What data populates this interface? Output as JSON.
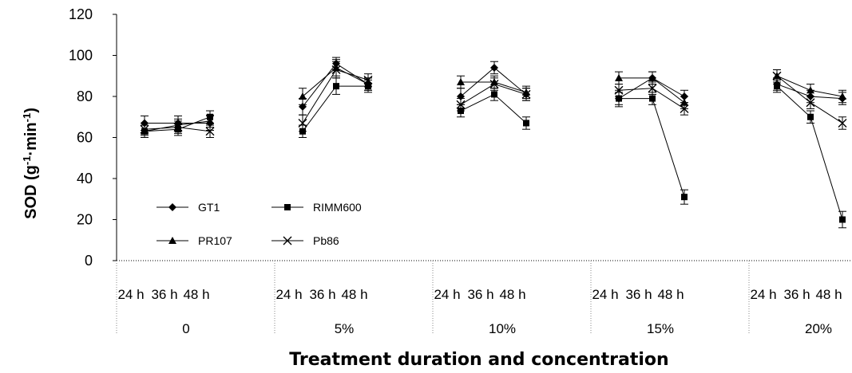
{
  "chart_data": {
    "type": "line",
    "ylabel": "SOD (g-1·min-1)",
    "ylabel_parts": {
      "base": "SOD (g",
      "sup1": "-1",
      "mid": "·min",
      "sup2": "-1",
      "end": ")"
    },
    "xlabel": "Treatment duration and concentration",
    "ylim": [
      0,
      120
    ],
    "yticks": [
      "0",
      "20",
      "40",
      "60",
      "80",
      "100",
      "120"
    ],
    "durations": [
      "24 h",
      "36 h",
      "48 h"
    ],
    "groups": [
      "0",
      "5%",
      "10%",
      "15%",
      "20%"
    ],
    "series": [
      {
        "name": "GT1",
        "marker": "diamond",
        "values": [
          [
            67,
            67,
            67
          ],
          [
            75,
            96,
            86
          ],
          [
            80,
            94,
            81
          ],
          [
            79,
            89,
            80
          ],
          [
            86,
            80,
            79
          ]
        ],
        "errors": [
          [
            3.5,
            3.5,
            3.5
          ],
          [
            4,
            3,
            3
          ],
          [
            4,
            3,
            3
          ],
          [
            4,
            3,
            3
          ],
          [
            3,
            3,
            3
          ]
        ]
      },
      {
        "name": "RIMM600",
        "marker": "square",
        "values": [
          [
            63,
            64,
            70
          ],
          [
            63,
            85,
            85
          ],
          [
            73,
            81,
            67
          ],
          [
            79,
            79,
            31
          ],
          [
            85,
            70,
            20
          ]
        ],
        "errors": [
          [
            3,
            3,
            3
          ],
          [
            3,
            4,
            3
          ],
          [
            3,
            3,
            3
          ],
          [
            3,
            3,
            3.5
          ],
          [
            3,
            3,
            4
          ]
        ]
      },
      {
        "name": "PR107",
        "marker": "triangle",
        "values": [
          [
            63,
            66,
            68
          ],
          [
            80,
            94,
            86
          ],
          [
            87,
            87,
            82
          ],
          [
            89,
            89,
            77
          ],
          [
            90,
            83,
            80
          ]
        ],
        "errors": [
          [
            3,
            3,
            3
          ],
          [
            4,
            4,
            3
          ],
          [
            3,
            3,
            3
          ],
          [
            3,
            3,
            3
          ],
          [
            3,
            3,
            3
          ]
        ]
      },
      {
        "name": "Pb86",
        "marker": "cross",
        "values": [
          [
            64,
            65,
            63
          ],
          [
            67,
            93,
            88
          ],
          [
            76,
            86,
            81
          ],
          [
            83,
            84,
            74
          ],
          [
            90,
            77,
            67
          ]
        ],
        "errors": [
          [
            3,
            3,
            3
          ],
          [
            4,
            4,
            3
          ],
          [
            3,
            3,
            3
          ],
          [
            3,
            3,
            3
          ],
          [
            3,
            3,
            3
          ]
        ]
      }
    ],
    "legend": {
      "layout": "2x2",
      "placement": "lower-left"
    }
  }
}
